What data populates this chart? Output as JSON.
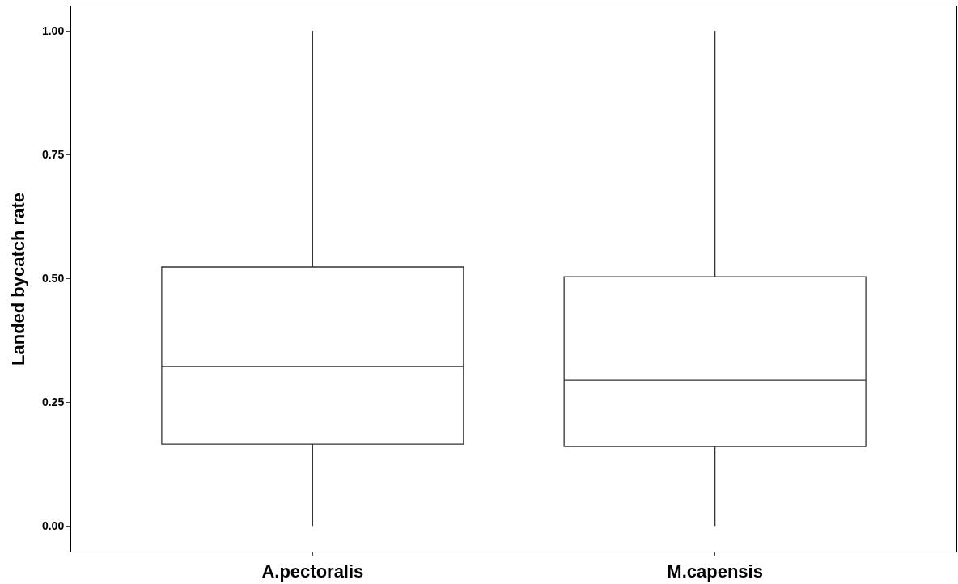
{
  "chart_data": {
    "type": "box",
    "ylabel": "Landed bycatch rate",
    "categories": [
      "A.pectoralis",
      "M.capensis"
    ],
    "boxes": [
      {
        "low": 0,
        "q1": 0.165,
        "median": 0.322,
        "q3": 0.523,
        "high": 1
      },
      {
        "low": 0,
        "q1": 0.16,
        "median": 0.294,
        "q3": 0.503,
        "high": 1
      }
    ],
    "color": "#333333",
    "ylim": [
      -0.052,
      1.049
    ],
    "yticks": [
      {
        "value": 0,
        "label": "0.00"
      },
      {
        "value": 0.25,
        "label": "0.25"
      },
      {
        "value": 0.5,
        "label": "0.50"
      },
      {
        "value": 0.75,
        "label": "0.75"
      },
      {
        "value": 1,
        "label": "1.00"
      }
    ]
  }
}
